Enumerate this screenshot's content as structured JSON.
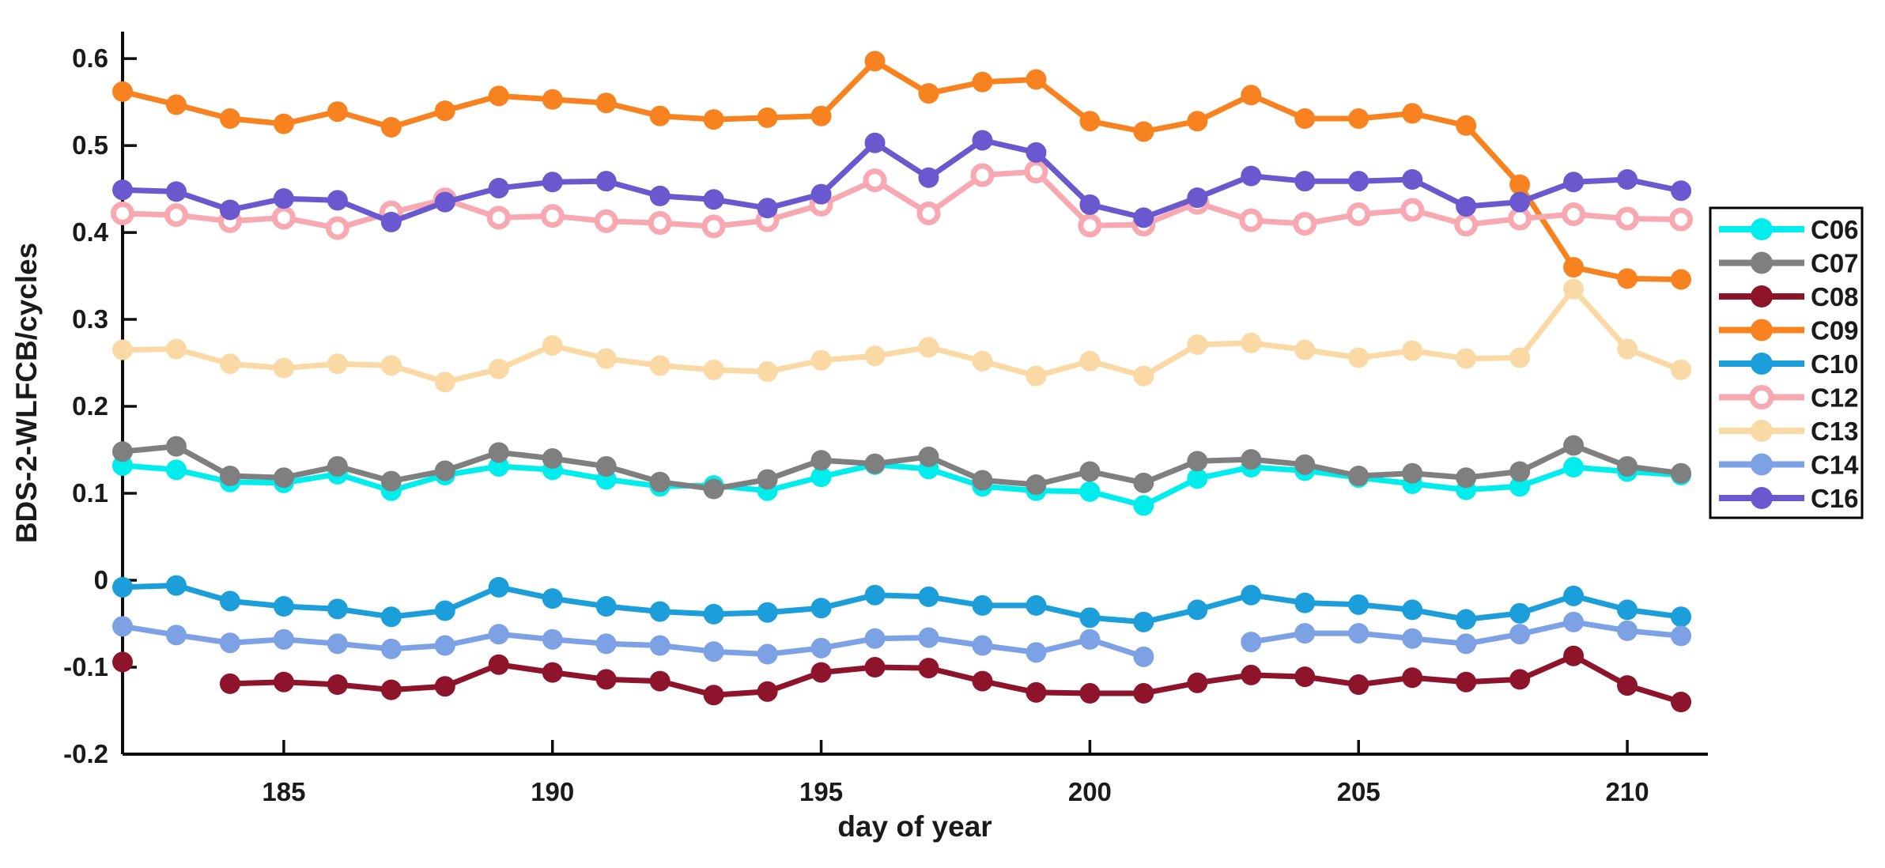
{
  "figure": {
    "background": "#ffffff",
    "axis_color": "#0d0d0d",
    "text_color": "#1a1a1a",
    "legend_border_color": "#000000"
  },
  "chart_data": {
    "type": "line",
    "title": "",
    "xlabel": "day of year",
    "ylabel": "BDS-2-WLFCB/cycles",
    "grid": false,
    "legend_position": "right-outside",
    "xlim": [
      182,
      211.5
    ],
    "ylim": [
      -0.2,
      0.631
    ],
    "xticks": [
      185,
      190,
      195,
      200,
      205,
      210
    ],
    "xtick_labels": [
      "185",
      "190",
      "195",
      "200",
      "205",
      "210"
    ],
    "yticks": [
      -0.2,
      -0.1,
      0,
      0.1,
      0.2,
      0.3,
      0.4,
      0.5,
      0.6
    ],
    "ytick_labels": [
      "-0.2",
      "-0.1",
      "0",
      "0.1",
      "0.2",
      "0.3",
      "0.4",
      "0.5",
      "0.6"
    ],
    "x": [
      182,
      183,
      184,
      185,
      186,
      187,
      188,
      189,
      190,
      191,
      192,
      193,
      194,
      195,
      196,
      197,
      198,
      199,
      200,
      201,
      202,
      203,
      204,
      205,
      206,
      207,
      208,
      209,
      210,
      211
    ],
    "series": [
      {
        "name": "C06",
        "color": "#00EDED",
        "marker": "filled",
        "values": [
          0.132,
          0.127,
          0.113,
          0.112,
          0.122,
          0.103,
          0.121,
          0.131,
          0.127,
          0.116,
          0.108,
          0.109,
          0.103,
          0.119,
          0.133,
          0.128,
          0.108,
          0.103,
          0.102,
          0.086,
          0.117,
          0.13,
          0.126,
          0.118,
          0.111,
          0.104,
          0.108,
          0.13,
          0.125,
          0.121
        ]
      },
      {
        "name": "C07",
        "color": "#7F7F7F",
        "marker": "filled",
        "values": [
          0.148,
          0.154,
          0.12,
          0.118,
          0.131,
          0.114,
          0.126,
          0.147,
          0.14,
          0.131,
          0.113,
          0.105,
          0.116,
          0.138,
          0.134,
          0.142,
          0.115,
          0.11,
          0.125,
          0.112,
          0.137,
          0.139,
          0.133,
          0.12,
          0.123,
          0.118,
          0.125,
          0.155,
          0.131,
          0.123
        ]
      },
      {
        "name": "C08",
        "color": "#8E142B",
        "marker": "filled",
        "values": [
          -0.094,
          null,
          -0.119,
          -0.117,
          -0.12,
          -0.126,
          -0.122,
          -0.097,
          -0.106,
          -0.114,
          -0.116,
          -0.132,
          -0.128,
          -0.106,
          -0.1,
          -0.101,
          -0.116,
          -0.129,
          -0.13,
          -0.13,
          -0.118,
          -0.109,
          -0.111,
          -0.12,
          -0.112,
          -0.117,
          -0.114,
          -0.087,
          -0.121,
          -0.14
        ]
      },
      {
        "name": "C09",
        "color": "#F8821F",
        "marker": "filled",
        "values": [
          0.562,
          0.547,
          0.531,
          0.525,
          0.539,
          0.521,
          0.54,
          0.557,
          0.553,
          0.549,
          0.534,
          0.53,
          0.532,
          0.534,
          0.597,
          0.56,
          0.573,
          0.576,
          0.528,
          0.516,
          0.528,
          0.558,
          0.531,
          0.531,
          0.537,
          0.523,
          0.455,
          0.36,
          0.347,
          0.346
        ]
      },
      {
        "name": "C10",
        "color": "#1B9ED9",
        "marker": "filled",
        "values": [
          -0.008,
          -0.006,
          -0.024,
          -0.03,
          -0.033,
          -0.042,
          -0.035,
          -0.008,
          -0.021,
          -0.03,
          -0.036,
          -0.039,
          -0.037,
          -0.032,
          -0.017,
          -0.019,
          -0.029,
          -0.029,
          -0.043,
          -0.048,
          -0.034,
          -0.017,
          -0.026,
          -0.028,
          -0.034,
          -0.045,
          -0.038,
          -0.018,
          -0.034,
          -0.042
        ]
      },
      {
        "name": "C12",
        "color": "#F8A8B0",
        "marker": "open",
        "values": [
          0.422,
          0.42,
          0.413,
          0.417,
          0.405,
          0.423,
          0.438,
          0.417,
          0.419,
          0.413,
          0.411,
          0.407,
          0.414,
          0.432,
          0.46,
          0.422,
          0.466,
          0.47,
          0.408,
          0.409,
          0.434,
          0.414,
          0.41,
          0.421,
          0.426,
          0.409,
          0.416,
          0.421,
          0.416,
          0.415
        ]
      },
      {
        "name": "C13",
        "color": "#FBD9A4",
        "marker": "filled",
        "values": [
          0.265,
          0.266,
          0.249,
          0.244,
          0.249,
          0.247,
          0.228,
          0.243,
          0.27,
          0.255,
          0.247,
          0.242,
          0.24,
          0.253,
          0.258,
          0.268,
          0.252,
          0.235,
          0.252,
          0.235,
          0.271,
          0.273,
          0.265,
          0.256,
          0.264,
          0.255,
          0.256,
          0.335,
          0.266,
          0.242
        ]
      },
      {
        "name": "C14",
        "color": "#7CA1E4",
        "marker": "filled",
        "values": [
          -0.053,
          -0.063,
          -0.072,
          -0.068,
          -0.073,
          -0.079,
          -0.075,
          -0.062,
          -0.068,
          -0.073,
          -0.075,
          -0.082,
          -0.085,
          -0.078,
          -0.067,
          -0.066,
          -0.075,
          -0.083,
          -0.068,
          -0.088,
          null,
          -0.071,
          -0.061,
          -0.061,
          -0.067,
          -0.073,
          -0.062,
          -0.048,
          -0.058,
          -0.064
        ]
      },
      {
        "name": "C16",
        "color": "#6A58CF",
        "marker": "filled",
        "values": [
          0.449,
          0.447,
          0.426,
          0.439,
          0.437,
          0.412,
          0.435,
          0.451,
          0.458,
          0.459,
          0.442,
          0.438,
          0.428,
          0.444,
          0.503,
          0.463,
          0.506,
          0.492,
          0.432,
          0.417,
          0.44,
          0.465,
          0.459,
          0.459,
          0.461,
          0.43,
          0.435,
          0.458,
          0.461,
          0.448
        ]
      }
    ],
    "legend_entries": [
      "C06",
      "C07",
      "C08",
      "C09",
      "C10",
      "C12",
      "C13",
      "C14",
      "C16"
    ]
  }
}
